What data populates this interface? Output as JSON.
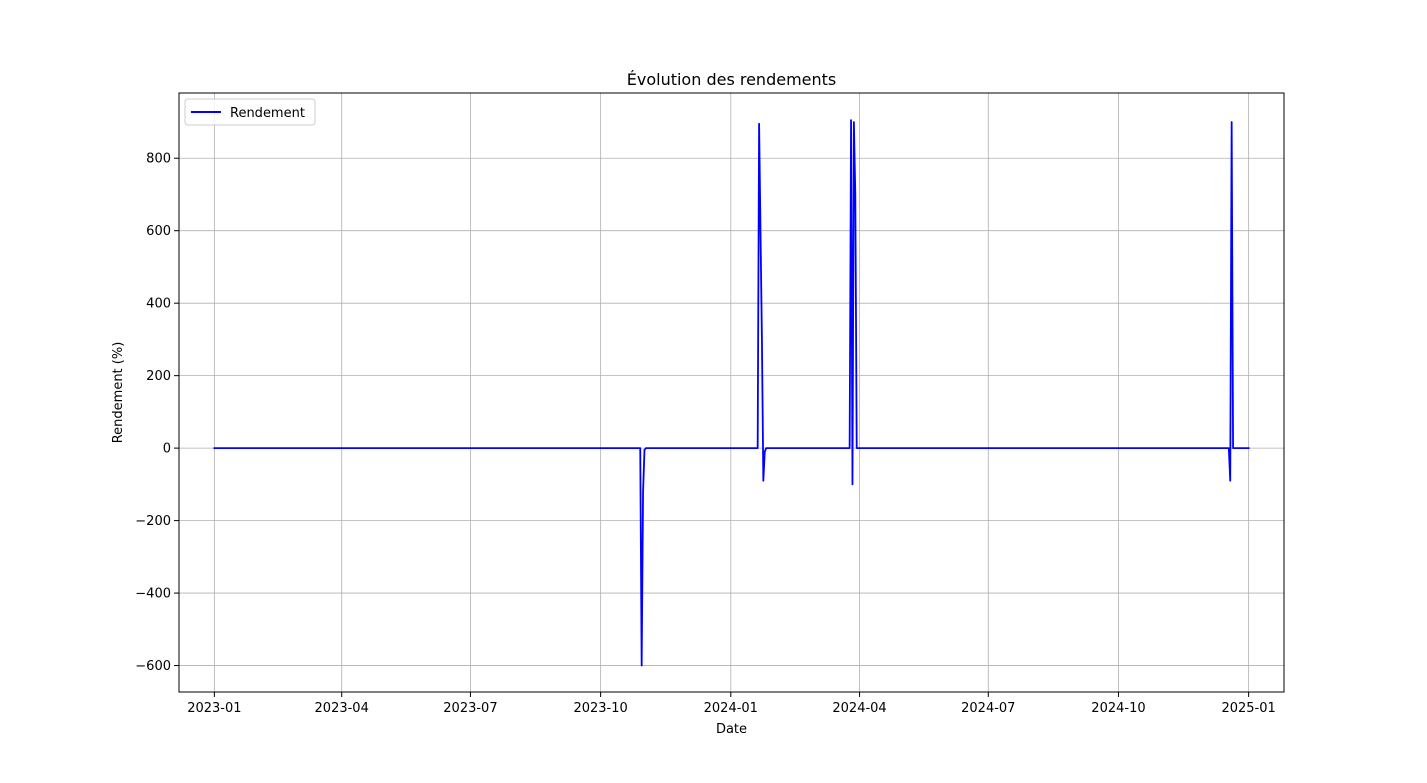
{
  "chart_data": {
    "type": "line",
    "title": "Évolution des rendements",
    "xlabel": "Date",
    "ylabel": "Rendement (%)",
    "grid": true,
    "legend": {
      "placement": "top-left",
      "entries": [
        "Rendement"
      ]
    },
    "xlim": [
      "2022-12-07",
      "2025-01-26"
    ],
    "ylim": [
      -673,
      980
    ],
    "x_ticks": [
      {
        "date": "2023-01-01",
        "label": "2023-01"
      },
      {
        "date": "2023-04-01",
        "label": "2023-04"
      },
      {
        "date": "2023-07-01",
        "label": "2023-07"
      },
      {
        "date": "2023-10-01",
        "label": "2023-10"
      },
      {
        "date": "2024-01-01",
        "label": "2024-01"
      },
      {
        "date": "2024-04-01",
        "label": "2024-04"
      },
      {
        "date": "2024-07-01",
        "label": "2024-07"
      },
      {
        "date": "2024-10-01",
        "label": "2024-10"
      },
      {
        "date": "2025-01-01",
        "label": "2025-01"
      }
    ],
    "y_ticks": [
      {
        "value": -600,
        "label": "−600"
      },
      {
        "value": -400,
        "label": "−400"
      },
      {
        "value": -200,
        "label": "−200"
      },
      {
        "value": 0,
        "label": "0"
      },
      {
        "value": 200,
        "label": "200"
      },
      {
        "value": 400,
        "label": "400"
      },
      {
        "value": 600,
        "label": "600"
      },
      {
        "value": 800,
        "label": "800"
      }
    ],
    "series": [
      {
        "name": "Rendement",
        "color": "#0000ff",
        "points": [
          [
            "2023-01-01",
            0
          ],
          [
            "2023-06-01",
            0
          ],
          [
            "2023-10-28",
            0
          ],
          [
            "2023-10-29",
            0
          ],
          [
            "2023-10-30",
            -600
          ],
          [
            "2023-10-31",
            -120
          ],
          [
            "2023-11-01",
            -5
          ],
          [
            "2023-11-02",
            0
          ],
          [
            "2024-01-20",
            0
          ],
          [
            "2024-01-21",
            895
          ],
          [
            "2024-01-23",
            300
          ],
          [
            "2024-01-24",
            -90
          ],
          [
            "2024-01-25",
            -10
          ],
          [
            "2024-01-26",
            0
          ],
          [
            "2024-03-25",
            0
          ],
          [
            "2024-03-26",
            905
          ],
          [
            "2024-03-27",
            -100
          ],
          [
            "2024-03-28",
            900
          ],
          [
            "2024-03-29",
            700
          ],
          [
            "2024-03-30",
            0
          ],
          [
            "2024-12-18",
            0
          ],
          [
            "2024-12-19",
            -90
          ],
          [
            "2024-12-20",
            900
          ],
          [
            "2024-12-21",
            0
          ],
          [
            "2025-01-01",
            0
          ]
        ]
      }
    ]
  }
}
